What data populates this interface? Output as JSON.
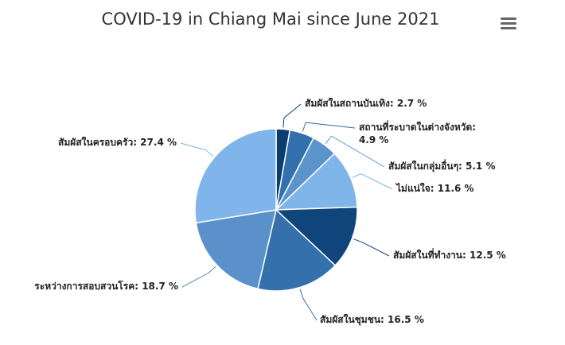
{
  "chart_data": {
    "type": "pie",
    "title": "COVID-19 in Chiang Mai since June 2021",
    "value_suffix": " %",
    "slices": [
      {
        "name": "สัมผัสในสถานบันเทิง",
        "value": 2.7,
        "color": "#0b3d6e"
      },
      {
        "name": "สถานที่ระบาดในต่างจังหวัด",
        "value": 4.9,
        "color": "#3271ad"
      },
      {
        "name": "สัมผัสในกลุ่มอื่นๆ",
        "value": 5.1,
        "color": "#5b93cc"
      },
      {
        "name": "ไม่แน่ใจ",
        "value": 11.6,
        "color": "#7fb5e9"
      },
      {
        "name": "สัมผัสในที่ทำงาน",
        "value": 12.5,
        "color": "#10457c"
      },
      {
        "name": "สัมผัสในชุมชน",
        "value": 16.5,
        "color": "#3470ab"
      },
      {
        "name": "ระหว่างการสอบสวนโรค",
        "value": 18.7,
        "color": "#5a91cb"
      },
      {
        "name": "สัมผัสในครอบครัว",
        "value": 27.4,
        "color": "#7fb5ea"
      }
    ]
  },
  "toolbar": {
    "menu_icon": "hamburger-menu-icon"
  }
}
